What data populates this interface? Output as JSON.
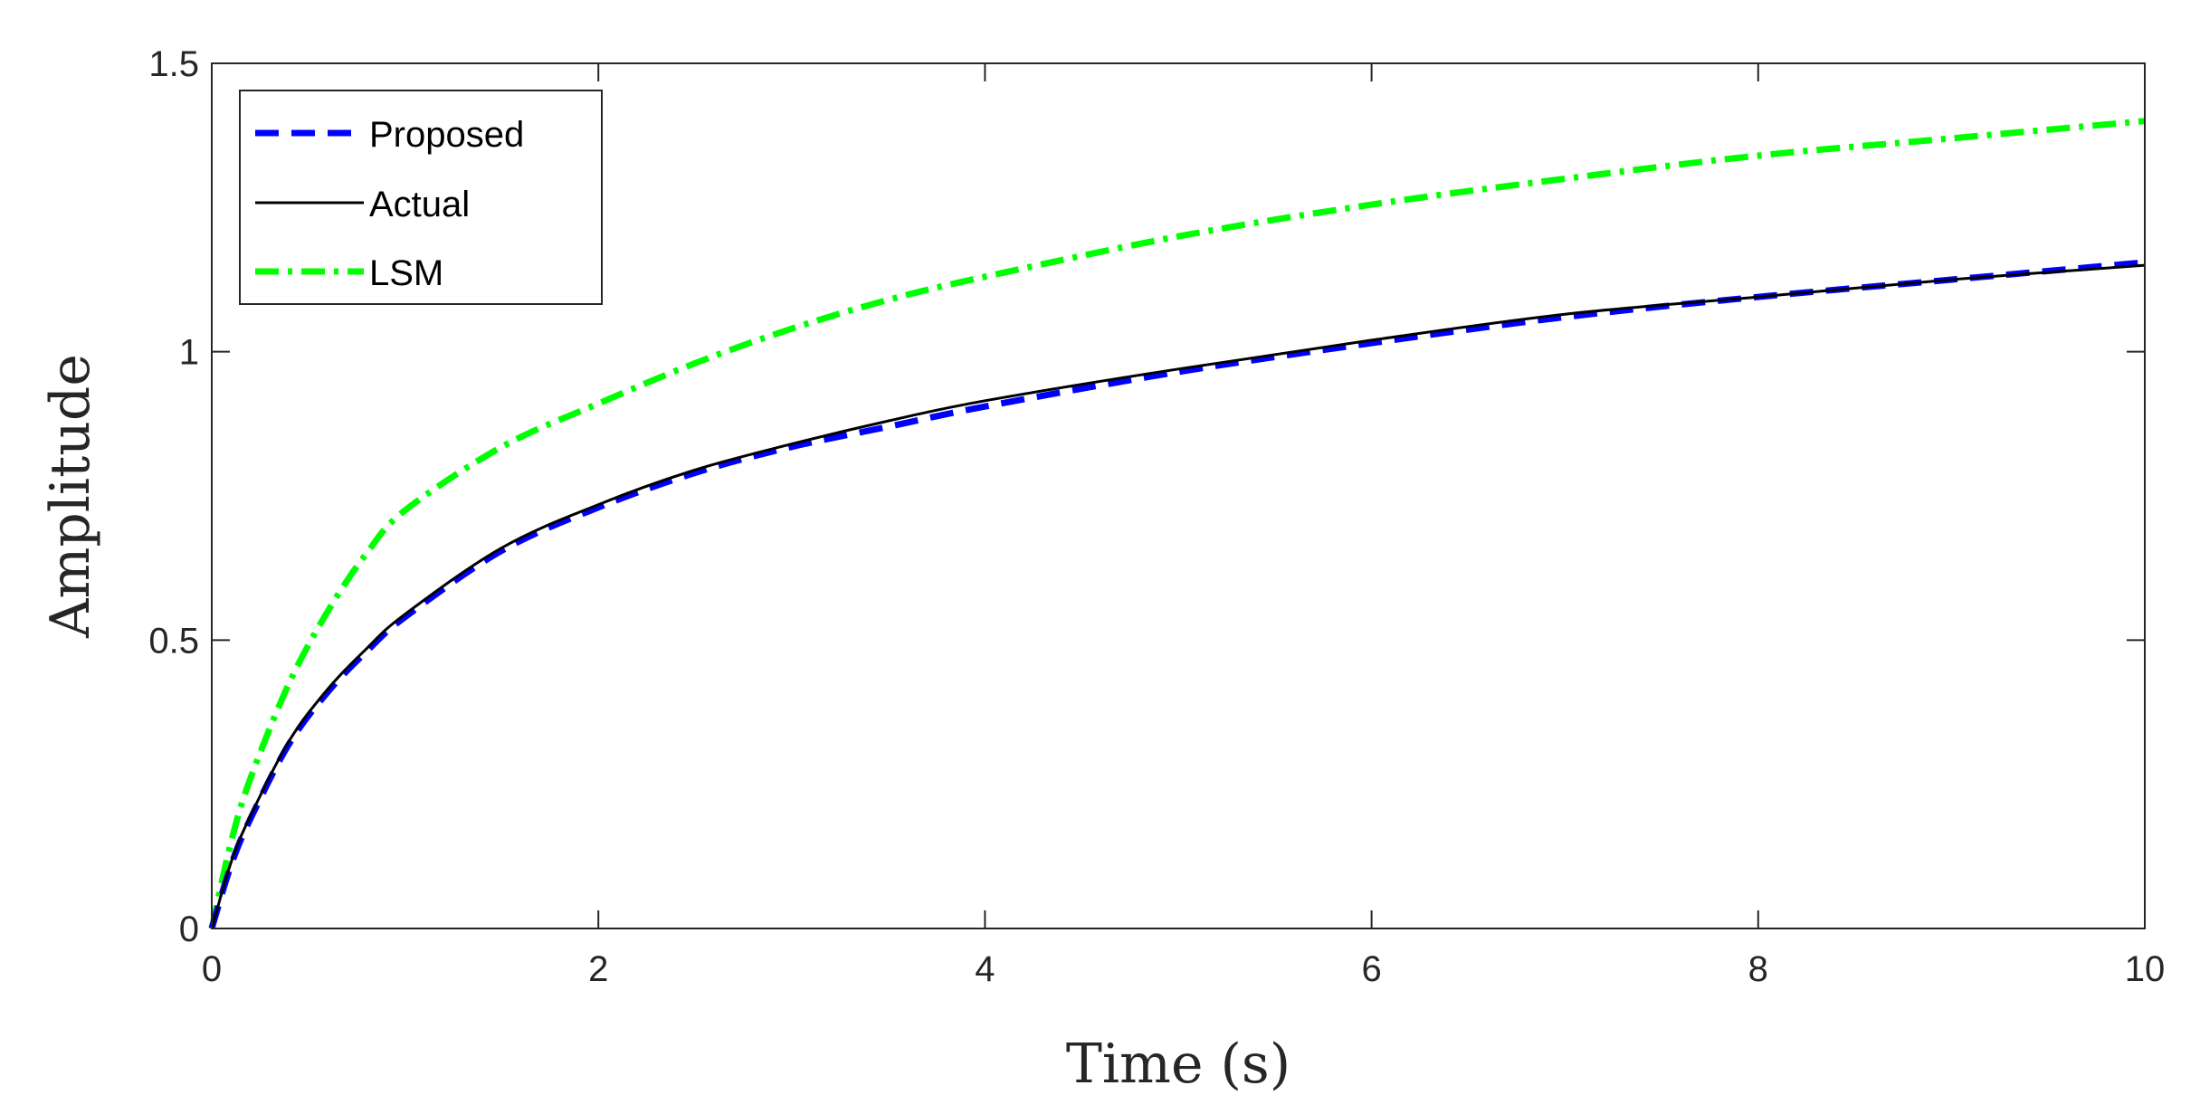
{
  "chart_data": {
    "type": "line",
    "title": "",
    "xlabel": "Time (s)",
    "ylabel": "Amplitude",
    "xlim": [
      0,
      10
    ],
    "ylim": [
      0,
      1.5
    ],
    "xticks": [
      0,
      2,
      4,
      6,
      8,
      10
    ],
    "xtick_labels": [
      "0",
      "2",
      "4",
      "6",
      "8",
      "10"
    ],
    "yticks": [
      0,
      0.5,
      1,
      1.5
    ],
    "ytick_labels": [
      "0",
      "0.5",
      "1",
      "1.5"
    ],
    "grid": false,
    "legend": "top-left",
    "x": [
      0,
      0.1,
      0.2,
      0.4,
      0.6,
      0.8,
      1,
      1.5,
      2,
      2.5,
      3,
      3.5,
      4,
      5,
      6,
      7,
      8,
      9,
      10
    ],
    "series": [
      {
        "name": "Proposed",
        "color": "#0000ff",
        "style": "dashed",
        "values": [
          0,
          0.11,
          0.19,
          0.32,
          0.41,
          0.48,
          0.54,
          0.655,
          0.73,
          0.79,
          0.835,
          0.87,
          0.905,
          0.965,
          1.015,
          1.06,
          1.095,
          1.125,
          1.155
        ]
      },
      {
        "name": "Actual",
        "color": "#000000",
        "style": "solid",
        "values": [
          0,
          0.115,
          0.195,
          0.325,
          0.415,
          0.485,
          0.545,
          0.66,
          0.735,
          0.795,
          0.84,
          0.88,
          0.915,
          0.97,
          1.02,
          1.065,
          1.095,
          1.125,
          1.15
        ]
      },
      {
        "name": "LSM",
        "color": "#00ff00",
        "style": "dashdot",
        "values": [
          0,
          0.15,
          0.26,
          0.425,
          0.55,
          0.65,
          0.725,
          0.835,
          0.91,
          0.98,
          1.04,
          1.09,
          1.13,
          1.2,
          1.255,
          1.3,
          1.34,
          1.37,
          1.4
        ]
      }
    ]
  }
}
